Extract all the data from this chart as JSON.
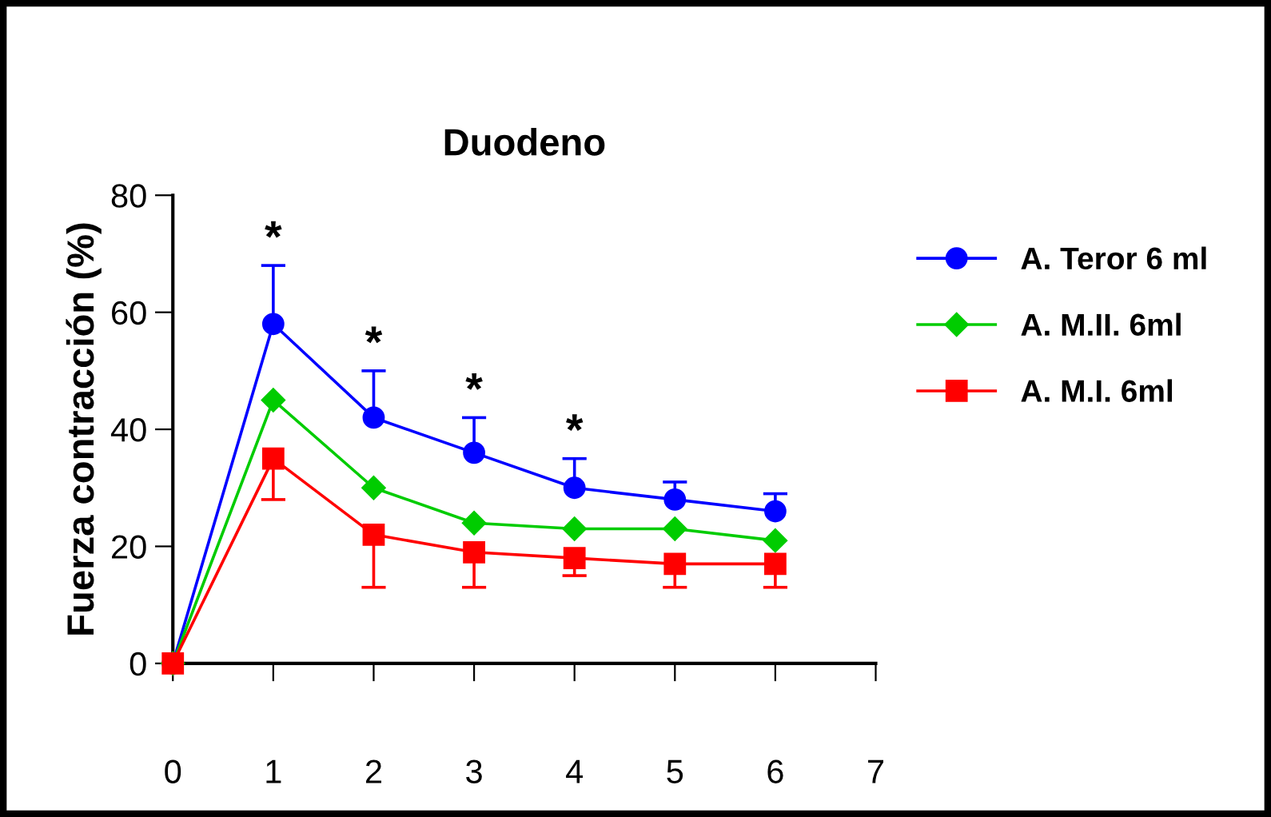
{
  "chart_data": {
    "type": "line",
    "title": "Duodeno",
    "ylabel": "Fuerza contracción (%)",
    "x": [
      0,
      1,
      2,
      3,
      4,
      5,
      6
    ],
    "series": [
      {
        "name": "A. Teror 6 ml",
        "color": "#0000ff",
        "marker": "circle",
        "values": [
          0,
          58,
          42,
          36,
          30,
          28,
          26
        ],
        "errors": [
          null,
          [
            58,
            68
          ],
          [
            42,
            50
          ],
          [
            36,
            42
          ],
          [
            30,
            35
          ],
          [
            28,
            31
          ],
          [
            26,
            29
          ]
        ]
      },
      {
        "name": "A. M.II. 6ml",
        "color": "#00cc00",
        "marker": "diamond",
        "values": [
          0,
          45,
          30,
          24,
          23,
          23,
          21
        ]
      },
      {
        "name": "A. M.I. 6ml",
        "color": "#ff0000",
        "marker": "square",
        "values": [
          0,
          35,
          22,
          19,
          18,
          17,
          17
        ],
        "errors": [
          null,
          [
            28,
            35
          ],
          [
            13,
            22
          ],
          [
            13,
            19
          ],
          [
            15,
            18
          ],
          [
            13,
            17
          ],
          [
            13,
            17
          ]
        ]
      }
    ],
    "annotations": [
      {
        "text": "*",
        "x": 1,
        "y": 68
      },
      {
        "text": "*",
        "x": 2,
        "y": 50
      },
      {
        "text": "*",
        "x": 3,
        "y": 42
      },
      {
        "text": "*",
        "x": 4,
        "y": 35
      }
    ],
    "xlim": [
      0,
      7
    ],
    "xticks": [
      0,
      1,
      2,
      3,
      4,
      5,
      6,
      7
    ],
    "ylim": [
      0,
      80
    ],
    "yticks": [
      0,
      20,
      40,
      60,
      80
    ],
    "grid": false,
    "legend": "top right"
  }
}
